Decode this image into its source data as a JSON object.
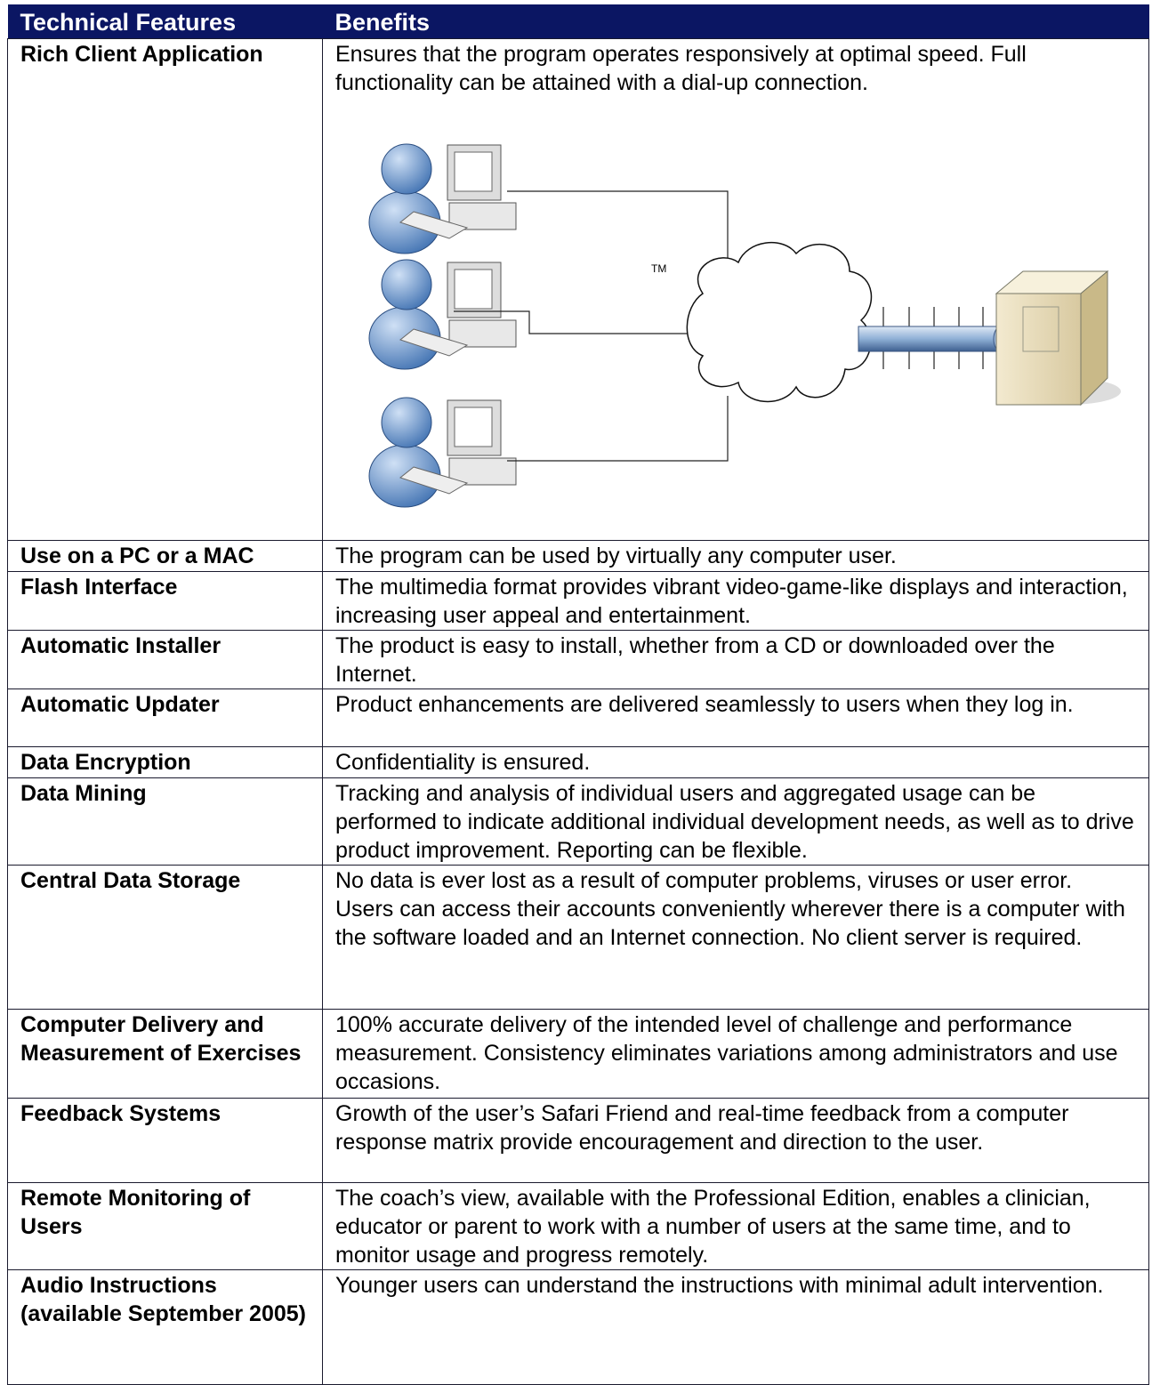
{
  "header": {
    "columns": [
      "Technical Features",
      "Benefits"
    ]
  },
  "rows": [
    {
      "feature": "Rich Client Application",
      "benefit": "Ensures that the program operates responsively at optimal speed. Full functionality can be attained with a dial-up connection."
    },
    {
      "feature": "Use on a PC or a MAC",
      "benefit": "The program can be used by virtually any computer user."
    },
    {
      "feature": "Flash Interface",
      "benefit": "The multimedia format provides vibrant video-game-like displays and interaction, increasing user appeal and entertainment."
    },
    {
      "feature": "Automatic Installer",
      "benefit": "The product is easy to install, whether from a CD or downloaded over the Internet."
    },
    {
      "feature": "Automatic Updater",
      "benefit": "Product enhancements are delivered seamlessly to users when they log in."
    },
    {
      "feature": "Data Encryption",
      "benefit": "Confidentiality is ensured."
    },
    {
      "feature": "Data Mining",
      "benefit": "Tracking and analysis of individual users and aggregated usage can be performed to indicate additional individual development needs, as well as to drive product improvement.  Reporting can be flexible."
    },
    {
      "feature": "Central Data Storage",
      "benefit": "No data is ever lost as a result of computer problems, viruses or user error.  Users can access their accounts conveniently wherever there is a computer with the software loaded and an Internet connection. No client server is required."
    },
    {
      "feature": "Computer Delivery and Measurement of Exercises",
      "benefit": "100% accurate delivery of the intended level of challenge and performance measurement.  Consistency eliminates variations among administrators and use occasions."
    },
    {
      "feature": "Feedback Systems",
      "benefit": "Growth of the user’s Safari Friend and real-time feedback from a computer response matrix provide encouragement and direction to the user."
    },
    {
      "feature": "Remote Monitoring of Users",
      "benefit": "The coach’s view, available with the Professional Edition, enables a clinician, educator or parent to work with a number of users at the same time, and to monitor usage and progress remotely."
    },
    {
      "feature": "Audio Instructions (available September 2005)",
      "benefit": "Younger users can understand the instructions with minimal adult intervention."
    }
  ],
  "diagram": {
    "tm": "TM"
  }
}
